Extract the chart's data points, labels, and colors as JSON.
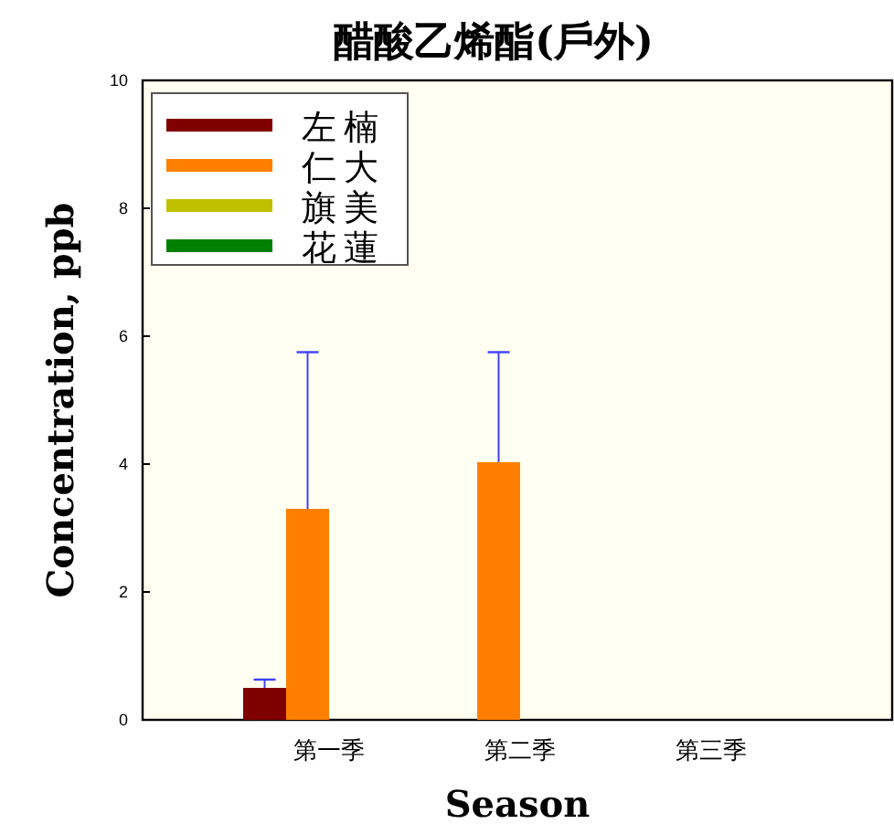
{
  "chart_data": {
    "type": "bar",
    "title": "醋酸乙烯酯(戶外)",
    "xlabel": "Season",
    "ylabel": "Concentration, ppb",
    "categories": [
      "第一季",
      "第二季",
      "第三季"
    ],
    "series": [
      {
        "name": "左楠",
        "color": "#800000",
        "values": [
          0.5,
          null,
          null
        ],
        "errors": [
          [
            0.5,
            0.63
          ],
          null,
          null
        ]
      },
      {
        "name": "仁大",
        "color": "#ff8000",
        "values": [
          3.3,
          4.03,
          null
        ],
        "errors": [
          [
            3.3,
            5.75
          ],
          [
            4.03,
            5.75
          ],
          null
        ]
      },
      {
        "name": "旗美",
        "color": "#c0c000",
        "values": [
          null,
          null,
          null
        ]
      },
      {
        "name": "花蓮",
        "color": "#008000",
        "values": [
          null,
          null,
          null
        ]
      }
    ],
    "ylim": [
      0,
      10
    ],
    "yticks": [
      0,
      2,
      4,
      6,
      8,
      10
    ],
    "legend": "top left"
  }
}
